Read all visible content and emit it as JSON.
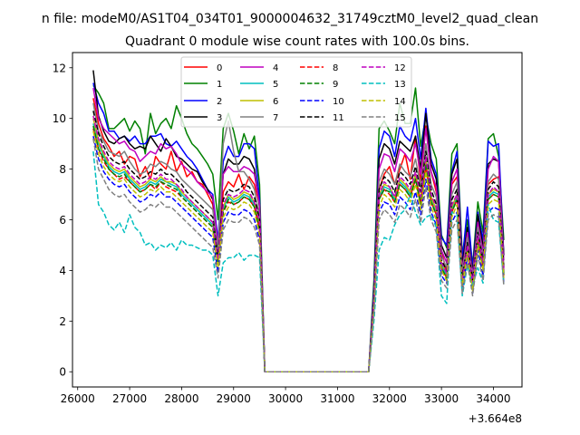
{
  "chart_data": {
    "type": "line",
    "suptitle": "n file: modeM0/AS1T04_034T01_9000004632_31749cztM0_level2_quad_clean",
    "title": "Quadrant 0 module wise count rates with 100.0s bins.",
    "xlabel": "",
    "ylabel": "",
    "x_offset_label": "+3.664e8",
    "xlim": [
      25900,
      34550
    ],
    "ylim": [
      -0.6,
      12.6
    ],
    "xticks": [
      26000,
      27000,
      28000,
      29000,
      30000,
      31000,
      32000,
      33000,
      34000
    ],
    "yticks": [
      0,
      2,
      4,
      6,
      8,
      10,
      12
    ],
    "grid": false,
    "legend": {
      "position": "top-center",
      "ncol": 4
    },
    "x": [
      26300,
      26400,
      26500,
      26600,
      26700,
      26800,
      26900,
      27000,
      27100,
      27200,
      27300,
      27400,
      27500,
      27600,
      27700,
      27800,
      27900,
      28000,
      28100,
      28200,
      28300,
      28400,
      28500,
      28600,
      28700,
      28800,
      28900,
      29000,
      29100,
      29200,
      29300,
      29400,
      29500,
      29600,
      29700,
      31600,
      31700,
      31800,
      31900,
      32000,
      32100,
      32200,
      32300,
      32400,
      32500,
      32600,
      32700,
      32800,
      32900,
      33000,
      33100,
      33200,
      33300,
      33400,
      33500,
      33600,
      33700,
      33800,
      33900,
      34000,
      34100,
      34200
    ],
    "series": [
      {
        "name": "0",
        "color": "#ff0000",
        "dash": "solid",
        "values": [
          10.8,
          9.8,
          9.2,
          8.9,
          8.5,
          8.7,
          8.2,
          8.5,
          8.4,
          7.7,
          8.1,
          7.6,
          8.5,
          8.2,
          8.0,
          8.7,
          7.9,
          8.3,
          7.7,
          7.9,
          7.5,
          7.4,
          7.0,
          6.6,
          4.6,
          7.1,
          7.5,
          7.3,
          7.8,
          7.2,
          7.7,
          7.4,
          6.6,
          0.0,
          0.0,
          0.0,
          2.8,
          7.2,
          7.8,
          8.1,
          7.4,
          8.0,
          8.6,
          7.6,
          9.3,
          7.5,
          9.7,
          7.9,
          7.1,
          4.8,
          3.9,
          7.4,
          7.7,
          4.1,
          5.5,
          4.0,
          6.0,
          4.9,
          7.4,
          7.6,
          7.7,
          3.9
        ]
      },
      {
        "name": "1",
        "color": "#008000",
        "dash": "solid",
        "values": [
          11.3,
          11.0,
          10.6,
          9.6,
          9.6,
          9.8,
          10.0,
          9.5,
          9.9,
          9.6,
          8.6,
          10.2,
          9.4,
          9.8,
          10.0,
          9.6,
          10.5,
          10.0,
          9.4,
          9.0,
          8.8,
          8.5,
          8.2,
          7.8,
          6.0,
          9.6,
          10.2,
          9.5,
          8.6,
          9.4,
          8.8,
          9.3,
          7.4,
          0.0,
          0.0,
          0.0,
          3.6,
          9.6,
          9.9,
          9.5,
          9.0,
          10.6,
          9.8,
          9.8,
          11.2,
          8.9,
          10.1,
          9.0,
          8.4,
          5.4,
          4.9,
          8.6,
          9.0,
          4.6,
          6.0,
          4.2,
          6.7,
          5.5,
          9.2,
          9.4,
          8.5,
          5.2
        ]
      },
      {
        "name": "2",
        "color": "#0000ff",
        "dash": "solid",
        "values": [
          11.4,
          10.6,
          10.2,
          9.5,
          9.5,
          9.2,
          9.3,
          9.1,
          9.3,
          9.0,
          9.0,
          9.3,
          9.3,
          9.4,
          9.0,
          8.9,
          9.1,
          8.8,
          8.5,
          8.3,
          8.0,
          7.6,
          7.2,
          7.0,
          5.2,
          8.3,
          8.9,
          8.5,
          8.5,
          9.0,
          9.0,
          8.8,
          6.8,
          0.0,
          0.0,
          0.0,
          3.3,
          8.8,
          9.5,
          9.3,
          8.5,
          9.7,
          9.3,
          9.1,
          10.0,
          8.4,
          10.4,
          8.4,
          7.8,
          5.3,
          5.0,
          7.9,
          8.7,
          4.4,
          6.5,
          4.1,
          6.3,
          5.2,
          9.1,
          8.9,
          9.0,
          4.6
        ]
      },
      {
        "name": "3",
        "color": "#000000",
        "dash": "solid",
        "values": [
          11.9,
          10.1,
          9.5,
          9.1,
          9.0,
          9.2,
          9.3,
          9.0,
          8.8,
          8.9,
          8.8,
          9.3,
          9.0,
          8.7,
          9.2,
          8.9,
          8.5,
          8.4,
          8.2,
          8.0,
          7.9,
          7.5,
          7.2,
          6.8,
          4.9,
          7.8,
          8.4,
          8.2,
          8.2,
          8.5,
          8.4,
          8.0,
          6.5,
          0.0,
          0.0,
          0.0,
          3.1,
          8.4,
          9.0,
          8.8,
          8.2,
          9.1,
          8.9,
          8.7,
          9.3,
          8.0,
          10.2,
          8.2,
          7.6,
          5.0,
          4.5,
          7.8,
          8.4,
          4.2,
          5.7,
          3.9,
          6.2,
          4.9,
          8.2,
          8.4,
          8.3,
          4.6
        ]
      },
      {
        "name": "4",
        "color": "#bf00bf",
        "dash": "solid",
        "values": [
          11.2,
          10.0,
          9.6,
          9.4,
          9.2,
          9.0,
          9.1,
          8.8,
          8.7,
          8.3,
          8.5,
          8.7,
          8.6,
          9.0,
          8.8,
          8.9,
          8.6,
          8.2,
          8.0,
          7.8,
          7.5,
          7.3,
          7.1,
          6.9,
          5.0,
          7.8,
          8.1,
          7.9,
          7.9,
          8.1,
          8.0,
          7.8,
          6.6,
          0.0,
          0.0,
          0.0,
          3.0,
          8.0,
          8.6,
          8.5,
          7.9,
          8.8,
          8.6,
          8.3,
          9.0,
          7.8,
          9.6,
          7.9,
          7.3,
          4.8,
          4.3,
          7.5,
          8.0,
          4.0,
          5.5,
          3.8,
          5.9,
          4.7,
          8.0,
          8.5,
          8.3,
          4.4
        ]
      },
      {
        "name": "5",
        "color": "#00bfbf",
        "dash": "solid",
        "values": [
          9.8,
          9.0,
          8.5,
          8.1,
          7.9,
          7.8,
          7.9,
          7.6,
          7.4,
          7.2,
          7.3,
          7.5,
          7.4,
          7.6,
          7.5,
          7.4,
          7.3,
          7.0,
          6.8,
          6.6,
          6.4,
          6.2,
          6.0,
          5.8,
          4.3,
          6.4,
          6.9,
          6.7,
          6.8,
          7.0,
          6.9,
          6.6,
          5.7,
          0.0,
          0.0,
          0.0,
          2.7,
          6.9,
          7.3,
          7.2,
          6.8,
          7.5,
          7.3,
          7.0,
          7.7,
          6.7,
          8.3,
          6.8,
          6.3,
          4.2,
          3.8,
          6.4,
          6.9,
          3.6,
          4.9,
          3.4,
          5.2,
          4.2,
          6.9,
          7.1,
          7.0,
          3.9
        ]
      },
      {
        "name": "6",
        "color": "#bfbf00",
        "dash": "solid",
        "values": [
          10.0,
          9.1,
          8.6,
          8.2,
          8.0,
          7.9,
          8.0,
          7.7,
          7.5,
          7.3,
          7.4,
          7.6,
          7.5,
          7.7,
          7.5,
          7.5,
          7.4,
          7.1,
          6.9,
          6.7,
          6.5,
          6.3,
          6.1,
          5.9,
          4.4,
          6.5,
          7.0,
          6.8,
          6.9,
          7.1,
          7.0,
          6.7,
          5.8,
          0.0,
          0.0,
          0.0,
          2.7,
          7.0,
          7.4,
          7.3,
          6.9,
          7.6,
          7.4,
          7.1,
          7.8,
          6.8,
          8.4,
          6.9,
          6.4,
          4.3,
          3.9,
          6.5,
          7.0,
          3.6,
          5.0,
          3.5,
          5.3,
          4.3,
          7.0,
          7.2,
          7.1,
          4.0
        ]
      },
      {
        "name": "7",
        "color": "#808080",
        "dash": "solid",
        "values": [
          10.6,
          9.5,
          9.1,
          8.7,
          8.6,
          8.5,
          8.7,
          8.3,
          8.0,
          7.8,
          7.9,
          8.2,
          8.1,
          8.3,
          8.2,
          8.0,
          7.9,
          7.6,
          7.4,
          7.2,
          7.0,
          6.8,
          6.6,
          6.4,
          4.7,
          9.0,
          9.9,
          8.7,
          7.9,
          7.9,
          7.6,
          7.2,
          6.1,
          0.0,
          0.0,
          0.0,
          2.9,
          7.5,
          8.0,
          7.8,
          7.4,
          8.2,
          7.9,
          7.7,
          8.4,
          7.3,
          9.0,
          7.4,
          6.9,
          4.6,
          4.1,
          7.0,
          7.5,
          3.9,
          5.3,
          3.7,
          5.7,
          4.5,
          7.5,
          7.8,
          7.6,
          4.2
        ]
      },
      {
        "name": "8",
        "color": "#ff0000",
        "dash": "dashed",
        "values": [
          9.6,
          8.8,
          8.3,
          8.0,
          7.8,
          7.6,
          7.7,
          7.5,
          7.3,
          7.1,
          7.2,
          7.4,
          7.2,
          7.5,
          7.3,
          7.2,
          7.1,
          6.9,
          6.7,
          6.5,
          6.3,
          6.1,
          5.9,
          5.7,
          4.2,
          6.3,
          6.7,
          6.6,
          6.7,
          6.9,
          6.8,
          6.5,
          5.6,
          0.0,
          0.0,
          0.0,
          2.6,
          6.8,
          7.2,
          7.0,
          6.7,
          7.4,
          7.2,
          6.9,
          7.6,
          6.6,
          8.1,
          6.7,
          6.2,
          4.1,
          3.7,
          6.3,
          6.8,
          3.5,
          4.8,
          3.3,
          5.1,
          4.1,
          6.8,
          7.0,
          6.9,
          3.8
        ]
      },
      {
        "name": "9",
        "color": "#008000",
        "dash": "dashed",
        "values": [
          9.7,
          8.8,
          8.4,
          8.0,
          7.8,
          7.7,
          7.8,
          7.5,
          7.3,
          7.1,
          7.2,
          7.4,
          7.3,
          7.5,
          7.4,
          7.3,
          7.2,
          6.9,
          6.7,
          6.5,
          6.3,
          6.1,
          5.9,
          5.7,
          4.2,
          6.3,
          6.8,
          6.6,
          6.7,
          6.9,
          6.8,
          6.5,
          5.6,
          0.0,
          0.0,
          0.0,
          2.6,
          6.8,
          7.2,
          7.1,
          6.7,
          7.4,
          7.2,
          6.9,
          7.6,
          6.6,
          8.2,
          6.7,
          6.2,
          4.1,
          3.7,
          6.3,
          6.8,
          3.5,
          4.8,
          3.4,
          5.1,
          4.1,
          6.8,
          7.0,
          6.9,
          3.8
        ]
      },
      {
        "name": "10",
        "color": "#0000ff",
        "dash": "dashed",
        "values": [
          9.3,
          8.4,
          7.9,
          7.6,
          7.4,
          7.3,
          7.4,
          7.1,
          6.9,
          6.7,
          6.8,
          7.0,
          6.9,
          7.1,
          6.9,
          6.9,
          6.7,
          6.5,
          6.3,
          6.1,
          5.9,
          5.7,
          5.5,
          5.3,
          3.9,
          5.9,
          6.3,
          6.2,
          6.2,
          6.4,
          6.3,
          6.0,
          5.2,
          0.0,
          0.0,
          0.0,
          2.4,
          6.3,
          6.7,
          6.6,
          6.2,
          6.9,
          6.7,
          6.4,
          7.1,
          6.2,
          7.6,
          6.3,
          5.8,
          3.8,
          3.5,
          5.9,
          6.3,
          3.3,
          4.5,
          3.1,
          4.8,
          3.8,
          6.3,
          6.5,
          6.4,
          3.5
        ]
      },
      {
        "name": "11",
        "color": "#000000",
        "dash": "dashed",
        "values": [
          10.3,
          9.4,
          8.9,
          8.5,
          8.3,
          8.2,
          8.3,
          8.0,
          7.8,
          7.6,
          7.7,
          7.9,
          7.8,
          8.0,
          7.8,
          7.8,
          7.6,
          7.4,
          7.1,
          6.9,
          6.7,
          6.5,
          6.3,
          6.1,
          4.5,
          6.8,
          7.2,
          7.1,
          7.2,
          7.4,
          7.3,
          6.9,
          6.0,
          0.0,
          0.0,
          0.0,
          2.8,
          7.2,
          7.7,
          7.5,
          7.1,
          7.9,
          7.7,
          7.4,
          8.1,
          7.1,
          8.7,
          7.2,
          6.6,
          4.4,
          4.0,
          6.8,
          7.2,
          3.7,
          5.1,
          3.6,
          5.5,
          4.4,
          7.2,
          7.5,
          7.3,
          4.1
        ]
      },
      {
        "name": "12",
        "color": "#bf00bf",
        "dash": "dashed",
        "values": [
          10.1,
          9.2,
          8.7,
          8.3,
          8.1,
          8.0,
          8.1,
          7.8,
          7.6,
          7.4,
          7.5,
          7.7,
          7.6,
          7.8,
          7.6,
          7.6,
          7.4,
          7.2,
          6.9,
          6.7,
          6.5,
          6.3,
          6.1,
          5.9,
          4.4,
          6.6,
          7.0,
          6.9,
          7.0,
          7.2,
          7.1,
          6.7,
          5.9,
          0.0,
          0.0,
          0.0,
          2.7,
          7.0,
          7.5,
          7.3,
          6.9,
          7.7,
          7.5,
          7.2,
          7.9,
          6.9,
          8.5,
          7.0,
          6.5,
          4.3,
          3.9,
          6.6,
          7.0,
          3.6,
          5.0,
          3.5,
          5.4,
          4.3,
          7.0,
          7.3,
          7.1,
          4.0
        ]
      },
      {
        "name": "13",
        "color": "#00bfbf",
        "dash": "dashed",
        "values": [
          8.7,
          6.6,
          6.3,
          5.8,
          5.6,
          5.9,
          5.5,
          6.2,
          5.7,
          5.5,
          5.0,
          5.1,
          4.8,
          5.0,
          4.9,
          5.1,
          4.8,
          5.2,
          5.0,
          5.0,
          4.9,
          4.8,
          4.8,
          4.6,
          3.0,
          4.3,
          4.5,
          4.5,
          4.7,
          4.4,
          4.6,
          4.6,
          4.5,
          0.0,
          0.0,
          0.0,
          2.0,
          4.8,
          5.3,
          5.2,
          5.8,
          6.2,
          6.4,
          7.0,
          6.3,
          5.8,
          6.1,
          6.2,
          5.7,
          3.0,
          2.7,
          6.3,
          6.2,
          3.0,
          4.2,
          3.4,
          4.1,
          3.5,
          6.6,
          6.0,
          5.9,
          3.5
        ]
      },
      {
        "name": "14",
        "color": "#bfbf00",
        "dash": "dashed",
        "values": [
          9.5,
          8.6,
          8.1,
          7.8,
          7.6,
          7.5,
          7.6,
          7.3,
          7.1,
          6.9,
          7.0,
          7.2,
          7.1,
          7.3,
          7.1,
          7.1,
          6.9,
          6.7,
          6.5,
          6.3,
          6.1,
          5.9,
          5.7,
          5.5,
          4.1,
          6.1,
          6.5,
          6.4,
          6.5,
          6.7,
          6.6,
          6.3,
          5.4,
          0.0,
          0.0,
          0.0,
          2.5,
          6.5,
          7.0,
          6.8,
          6.5,
          7.2,
          7.0,
          6.7,
          7.4,
          6.4,
          7.9,
          6.5,
          6.0,
          4.0,
          3.6,
          6.1,
          6.6,
          3.4,
          4.7,
          3.2,
          5.0,
          4.0,
          6.6,
          6.8,
          6.7,
          3.7
        ]
      },
      {
        "name": "15",
        "color": "#808080",
        "dash": "dashed",
        "values": [
          9.2,
          8.0,
          7.6,
          7.2,
          7.0,
          6.9,
          7.0,
          6.7,
          6.5,
          6.3,
          6.4,
          6.6,
          6.5,
          6.7,
          6.5,
          6.5,
          6.3,
          6.1,
          5.9,
          5.7,
          5.5,
          5.3,
          5.1,
          4.9,
          3.7,
          5.6,
          6.0,
          5.9,
          5.9,
          6.1,
          6.0,
          5.7,
          5.0,
          0.0,
          0.0,
          0.0,
          2.3,
          6.0,
          6.4,
          6.2,
          5.9,
          6.6,
          6.4,
          6.1,
          6.8,
          5.9,
          7.3,
          6.0,
          5.5,
          3.6,
          3.3,
          5.6,
          6.0,
          3.1,
          4.3,
          3.0,
          4.6,
          3.6,
          6.0,
          6.2,
          6.1,
          3.4
        ]
      }
    ]
  }
}
